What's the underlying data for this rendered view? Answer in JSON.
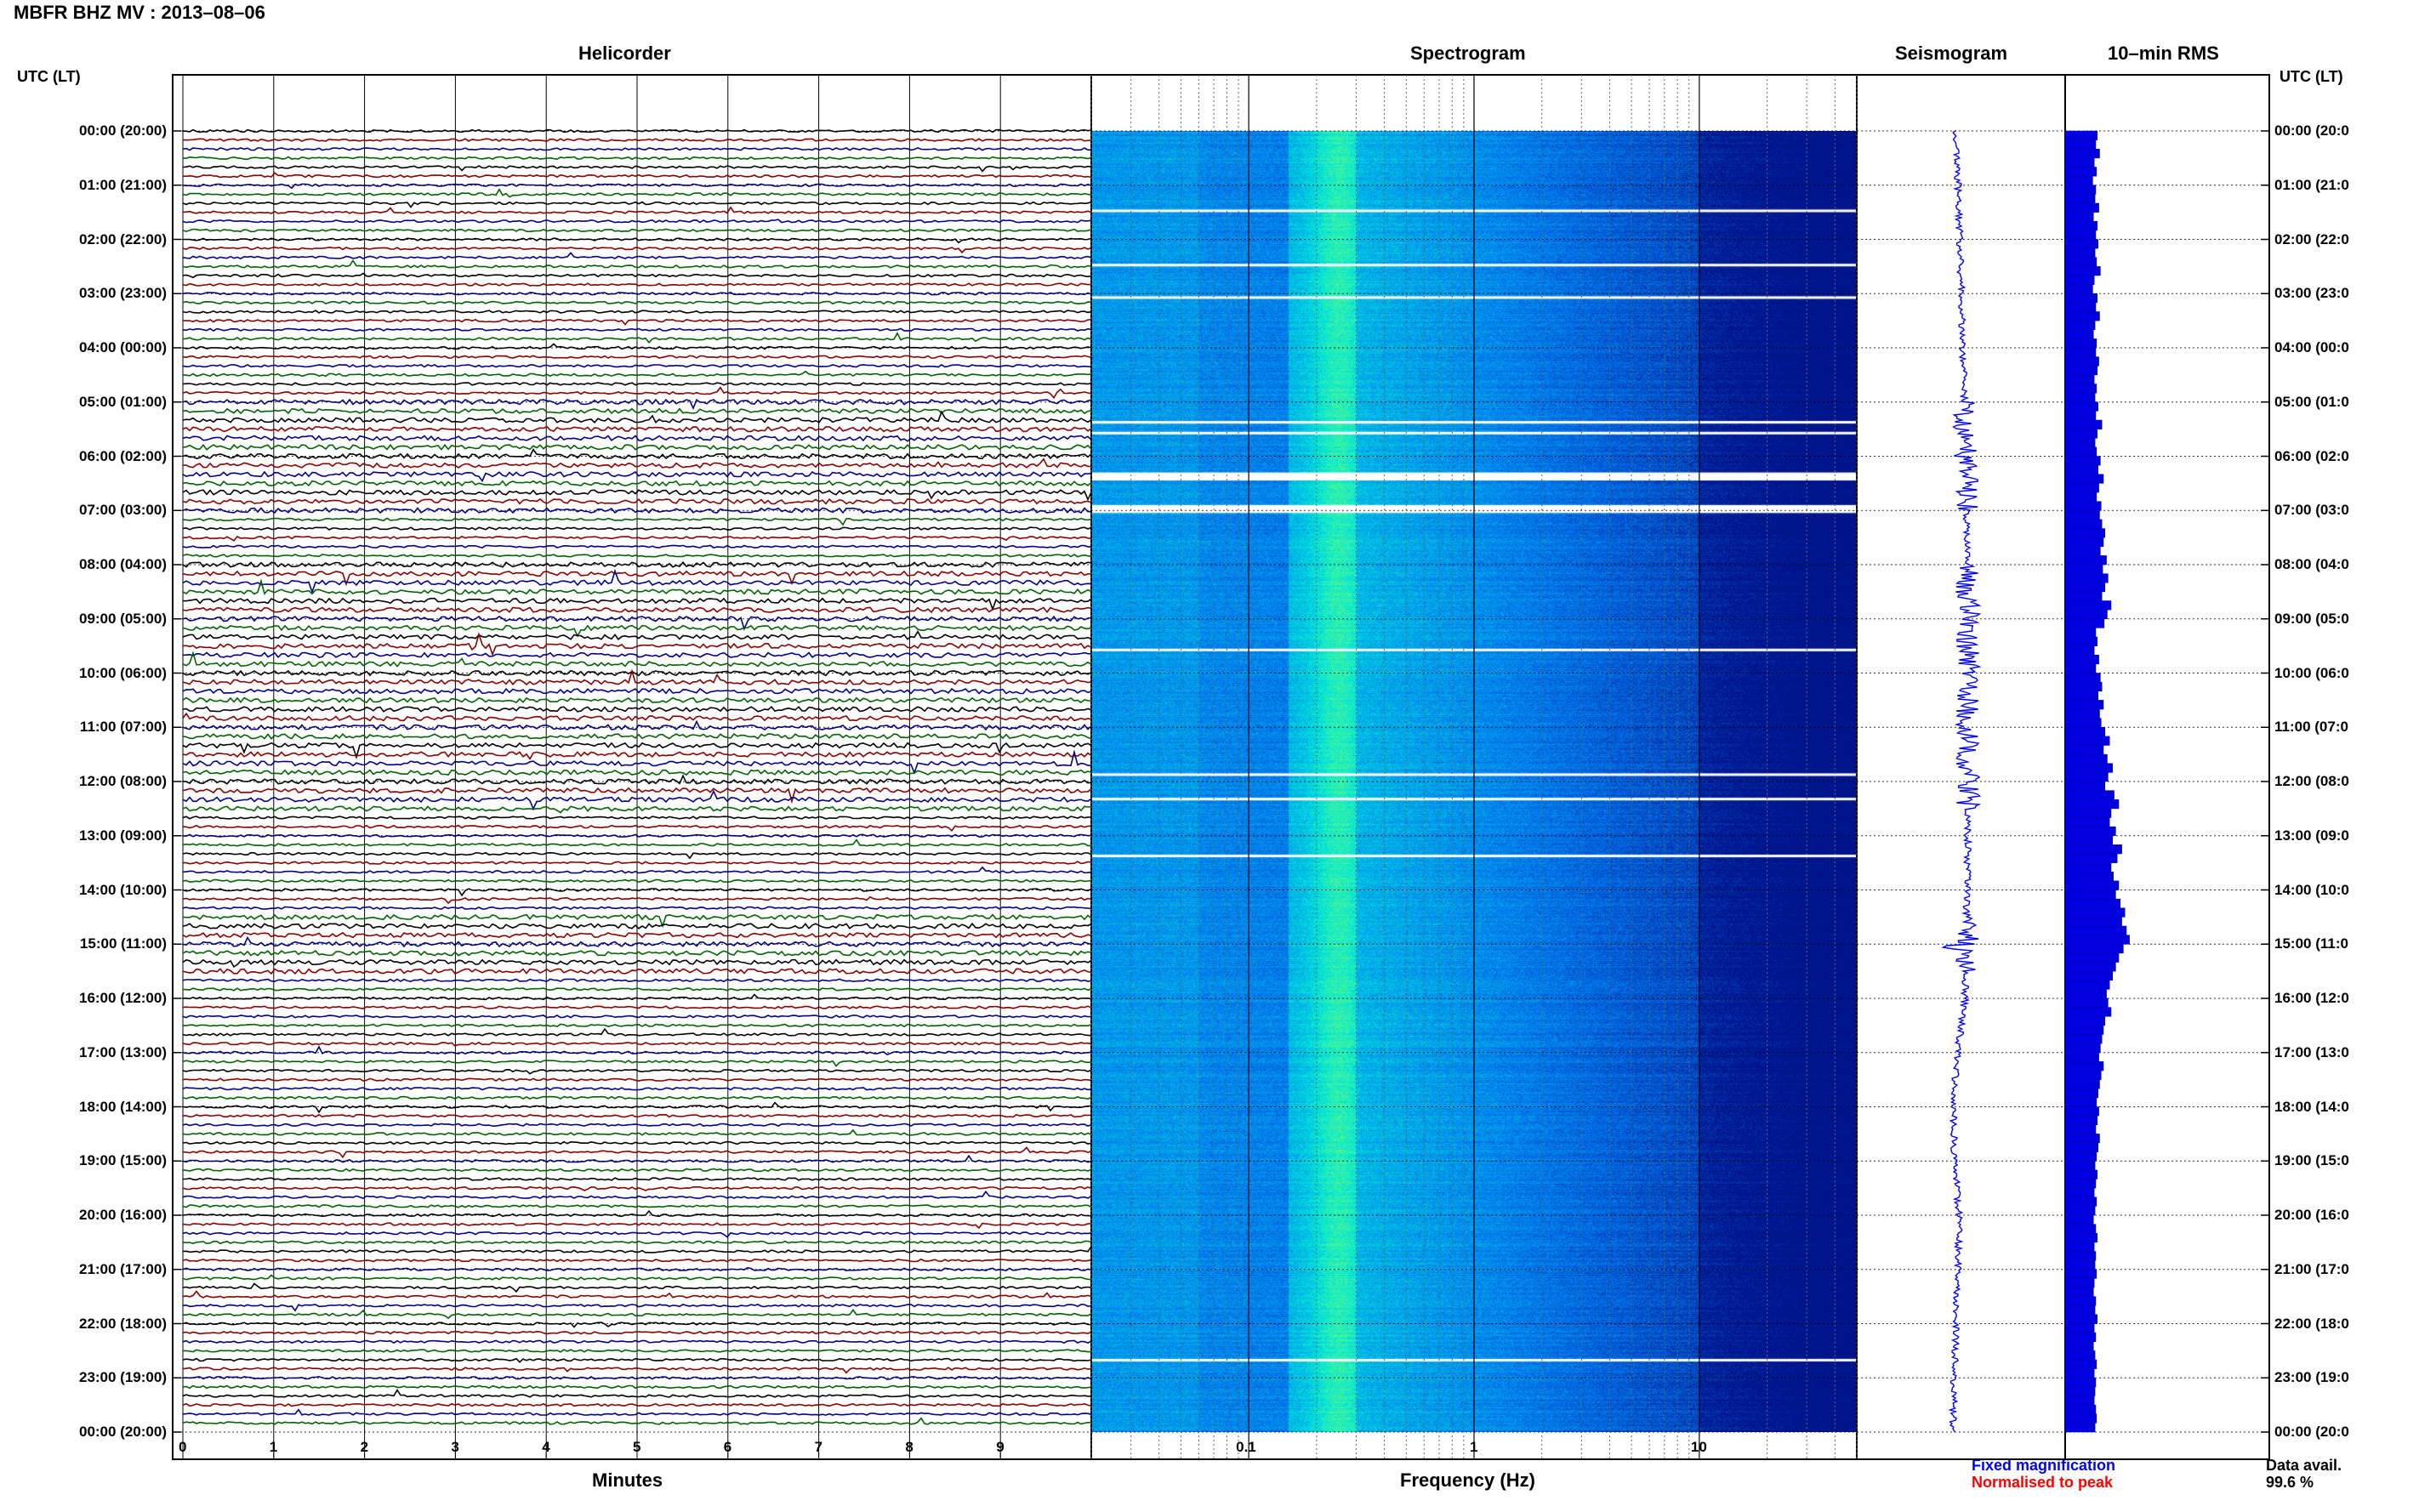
{
  "header": {
    "title": "MBFR BHZ MV : 2013–08–06",
    "utc_left": "UTC (LT)",
    "utc_right": "UTC (LT)"
  },
  "panels": {
    "helicorder": "Helicorder",
    "spectrogram": "Spectrogram",
    "seismogram": "Seismogram",
    "rms": "10–min RMS"
  },
  "time_labels": [
    "00:00 (20:00)",
    "01:00 (21:00)",
    "02:00 (22:00)",
    "03:00 (23:00)",
    "04:00 (00:00)",
    "05:00 (01:00)",
    "06:00 (02:00)",
    "07:00 (03:00)",
    "08:00 (04:00)",
    "09:00 (05:00)",
    "10:00 (06:00)",
    "11:00 (07:00)",
    "12:00 (08:00)",
    "13:00 (09:00)",
    "14:00 (10:00)",
    "15:00 (11:00)",
    "16:00 (12:00)",
    "17:00 (13:00)",
    "18:00 (14:00)",
    "19:00 (15:00)",
    "20:00 (16:00)",
    "21:00 (17:00)",
    "22:00 (18:00)",
    "23:00 (19:00)",
    "00:00 (20:00)"
  ],
  "time_labels_right": [
    "00:00 (20:0",
    "01:00 (21:0",
    "02:00 (22:0",
    "03:00 (23:0",
    "04:00 (00:0",
    "05:00 (01:0",
    "06:00 (02:0",
    "07:00 (03:0",
    "08:00 (04:0",
    "09:00 (05:0",
    "10:00 (06:0",
    "11:00 (07:0",
    "12:00 (08:0",
    "13:00 (09:0",
    "14:00 (10:0",
    "15:00 (11:0",
    "16:00 (12:0",
    "17:00 (13:0",
    "18:00 (14:0",
    "19:00 (15:0",
    "20:00 (16:0",
    "21:00 (17:0",
    "22:00 (18:0",
    "23:00 (19:0",
    "00:00 (20:0"
  ],
  "footer": {
    "minutes_label": "Minutes",
    "frequency_label": "Frequency (Hz)",
    "fixed_mag": "Fixed magnification",
    "normalised": "Normalised to peak",
    "data_avail": "Data avail.",
    "data_avail_value": "99.6 %"
  },
  "colors": {
    "trace_cycle": [
      "#000000",
      "#8b0000",
      "#00008b",
      "#006400"
    ],
    "seismogram": "#0000ff",
    "rms": "#0000e0",
    "fixed_mag": "#0000ff",
    "normalised": "#ff0000"
  },
  "chart_data": [
    {
      "type": "line",
      "name": "helicorder",
      "x_ticks": [
        "0",
        "1",
        "2",
        "3",
        "4",
        "5",
        "6",
        "7",
        "8",
        "9"
      ],
      "xlim": [
        0,
        10
      ],
      "xlabel": "Minutes",
      "rows": 144,
      "row_minutes": 10
    },
    {
      "type": "heatmap",
      "name": "spectrogram",
      "x_scale": "log",
      "xlim": [
        0.02,
        50
      ],
      "x_tick_labels": [
        "0.1",
        "1",
        "10"
      ],
      "x_tick_values": [
        0.1,
        1,
        10
      ],
      "xlabel": "Frequency (Hz)",
      "gaps_utc_hours": [
        1.45,
        2.45,
        3.05,
        5.35,
        5.55,
        6.3,
        6.4,
        6.9,
        7.0,
        9.55,
        11.85,
        12.3,
        13.35,
        22.65
      ]
    },
    {
      "type": "line",
      "name": "seismogram"
    },
    {
      "type": "bar",
      "name": "10-min RMS",
      "values": [
        0.42,
        0.4,
        0.45,
        0.38,
        0.41,
        0.36,
        0.4,
        0.39,
        0.44,
        0.37,
        0.42,
        0.4,
        0.43,
        0.39,
        0.41,
        0.46,
        0.38,
        0.36,
        0.42,
        0.4,
        0.45,
        0.39,
        0.37,
        0.41,
        0.4,
        0.44,
        0.42,
        0.38,
        0.41,
        0.39,
        0.43,
        0.4,
        0.48,
        0.42,
        0.39,
        0.41,
        0.46,
        0.43,
        0.5,
        0.44,
        0.41,
        0.47,
        0.45,
        0.48,
        0.52,
        0.5,
        0.46,
        0.54,
        0.49,
        0.56,
        0.52,
        0.48,
        0.6,
        0.55,
        0.51,
        0.4,
        0.42,
        0.38,
        0.44,
        0.4,
        0.46,
        0.48,
        0.43,
        0.5,
        0.45,
        0.47,
        0.52,
        0.58,
        0.5,
        0.55,
        0.62,
        0.56,
        0.52,
        0.64,
        0.7,
        0.6,
        0.58,
        0.66,
        0.62,
        0.74,
        0.68,
        0.6,
        0.63,
        0.7,
        0.66,
        0.72,
        0.78,
        0.74,
        0.8,
        0.84,
        0.76,
        0.7,
        0.66,
        0.62,
        0.58,
        0.54,
        0.56,
        0.6,
        0.52,
        0.5,
        0.48,
        0.46,
        0.44,
        0.5,
        0.47,
        0.45,
        0.43,
        0.41,
        0.44,
        0.42,
        0.4,
        0.45,
        0.43,
        0.41,
        0.39,
        0.42,
        0.4,
        0.38,
        0.41,
        0.39,
        0.37,
        0.4,
        0.42,
        0.38,
        0.4,
        0.39,
        0.41,
        0.38,
        0.37,
        0.4,
        0.39,
        0.42,
        0.38,
        0.4,
        0.37,
        0.39,
        0.41,
        0.38,
        0.4,
        0.39,
        0.38,
        0.4,
        0.41,
        0.39
      ]
    }
  ]
}
